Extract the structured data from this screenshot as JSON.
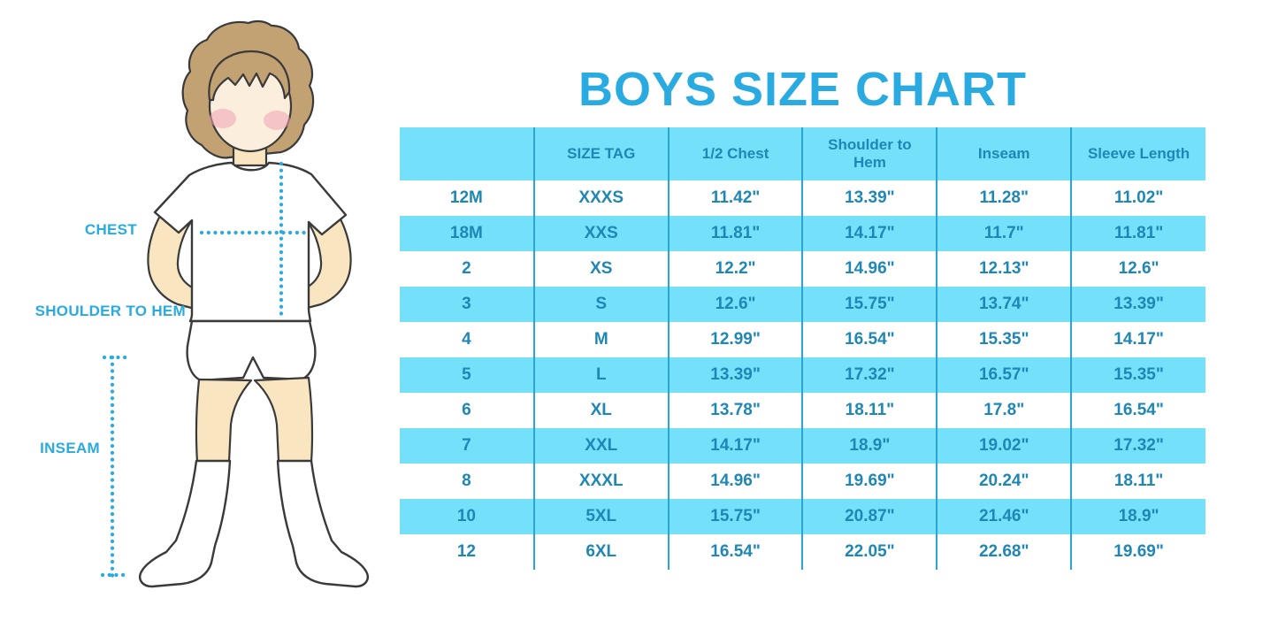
{
  "title": "BOYS SIZE CHART",
  "figure_labels": {
    "chest": "CHEST",
    "shoulder_to_hem": "SHOULDER TO HEM",
    "inseam": "INSEAM"
  },
  "colors": {
    "accent_blue": "#29ABE2",
    "band_cyan": "#74E0FA",
    "divider_blue": "#2BA6D4",
    "table_text_blue": "#1F87B5",
    "hair_brown": "#C2A173",
    "skin": "#F9E6C1",
    "cheek_pink": "#F0A3B5"
  },
  "chart_data": {
    "type": "table",
    "title": "BOYS SIZE CHART",
    "columns": [
      "",
      "SIZE TAG",
      "1/2 Chest",
      "Shoulder to Hem",
      "Inseam",
      "Sleeve Length"
    ],
    "rows": [
      [
        "12M",
        "XXXS",
        "11.42\"",
        "13.39\"",
        "11.28\"",
        "11.02\""
      ],
      [
        "18M",
        "XXS",
        "11.81\"",
        "14.17\"",
        "11.7\"",
        "11.81\""
      ],
      [
        "2",
        "XS",
        "12.2\"",
        "14.96\"",
        "12.13\"",
        "12.6\""
      ],
      [
        "3",
        "S",
        "12.6\"",
        "15.75\"",
        "13.74\"",
        "13.39\""
      ],
      [
        "4",
        "M",
        "12.99\"",
        "16.54\"",
        "15.35\"",
        "14.17\""
      ],
      [
        "5",
        "L",
        "13.39\"",
        "17.32\"",
        "16.57\"",
        "15.35\""
      ],
      [
        "6",
        "XL",
        "13.78\"",
        "18.11\"",
        "17.8\"",
        "16.54\""
      ],
      [
        "7",
        "XXL",
        "14.17\"",
        "18.9\"",
        "19.02\"",
        "17.32\""
      ],
      [
        "8",
        "XXXL",
        "14.96\"",
        "19.69\"",
        "20.24\"",
        "18.11\""
      ],
      [
        "10",
        "5XL",
        "15.75\"",
        "20.87\"",
        "21.46\"",
        "18.9\""
      ],
      [
        "12",
        "6XL",
        "16.54\"",
        "22.05\"",
        "22.68\"",
        "19.69\""
      ]
    ],
    "row_striping": "white/cyan alternating, header cyan",
    "legend_position": "none",
    "grid": "vertical dividers only"
  }
}
